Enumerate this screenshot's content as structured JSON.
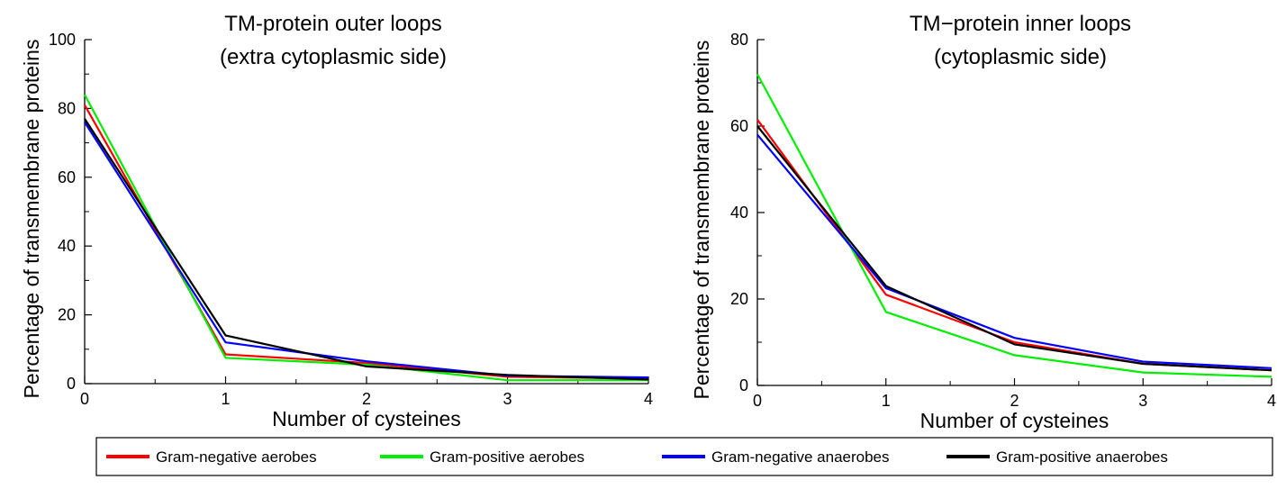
{
  "chart_data": [
    {
      "type": "line",
      "title": "TM-protein outer loops",
      "subtitle": "(extra cytoplasmic side)",
      "xlabel": "Number of cysteines",
      "ylabel": "Percentage of transmembrane proteins",
      "x": [
        0,
        1,
        2,
        3,
        4
      ],
      "xlim": [
        0,
        4
      ],
      "ylim": [
        0,
        100
      ],
      "xticks": [
        "0",
        "1",
        "2",
        "3",
        "4"
      ],
      "yticks": [
        "0",
        "20",
        "40",
        "60",
        "80",
        "100"
      ],
      "series": [
        {
          "name": "Gram-negative aerobes",
          "color": "#ff0000",
          "values": [
            81,
            8.5,
            6,
            2,
            1.5
          ]
        },
        {
          "name": "Gram-positive aerobes",
          "color": "#00ee00",
          "values": [
            84,
            7.5,
            5.5,
            1,
            1
          ]
        },
        {
          "name": "Gram-negative anaerobes",
          "color": "#0000ff",
          "values": [
            76,
            12,
            6.5,
            2.3,
            1.8
          ]
        },
        {
          "name": "Gram-positive anaerobes",
          "color": "#000000",
          "values": [
            77,
            14,
            5,
            2.5,
            1.2
          ]
        }
      ]
    },
    {
      "type": "line",
      "title": "TM−protein inner loops",
      "subtitle": "(cytoplasmic side)",
      "xlabel": "Number of cysteines",
      "ylabel": "Percentage of transmembrane proteins",
      "x": [
        0,
        1,
        2,
        3,
        4
      ],
      "xlim": [
        0,
        4
      ],
      "ylim": [
        0,
        80
      ],
      "xticks": [
        "0",
        "1",
        "2",
        "3",
        "4"
      ],
      "yticks": [
        "0",
        "20",
        "40",
        "60",
        "80"
      ],
      "series": [
        {
          "name": "Gram-negative aerobes",
          "color": "#ff0000",
          "values": [
            61.5,
            21,
            10,
            5,
            3.5
          ]
        },
        {
          "name": "Gram-positive aerobes",
          "color": "#00ee00",
          "values": [
            72,
            17,
            7,
            3,
            2
          ]
        },
        {
          "name": "Gram-negative anaerobes",
          "color": "#0000ff",
          "values": [
            58,
            22.5,
            11,
            5.5,
            4
          ]
        },
        {
          "name": "Gram-positive anaerobes",
          "color": "#000000",
          "values": [
            60,
            23,
            9.5,
            5,
            3.5
          ]
        }
      ]
    }
  ],
  "legend": {
    "items": [
      {
        "label": "Gram-negative aerobes",
        "color": "#ff0000"
      },
      {
        "label": "Gram-positive aerobes",
        "color": "#00ee00"
      },
      {
        "label": "Gram-negative anaerobes",
        "color": "#0000ff"
      },
      {
        "label": "Gram-positive anaerobes",
        "color": "#000000"
      }
    ]
  }
}
